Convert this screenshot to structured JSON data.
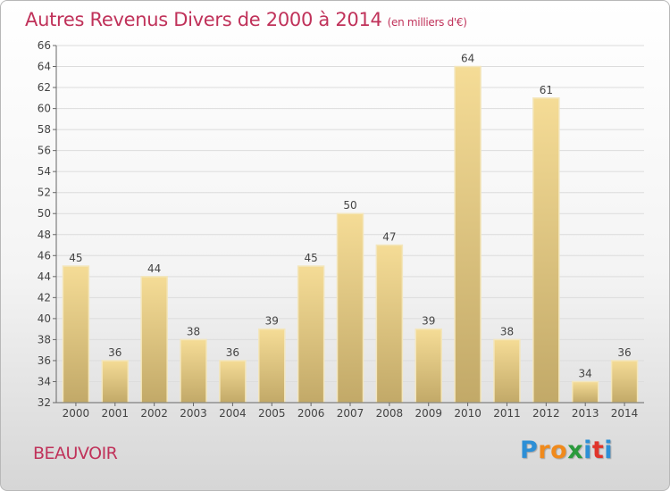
{
  "chart_data": {
    "type": "bar",
    "title": "Autres Revenus Divers de 2000 à 2014",
    "subtitle": "(en milliers d'€)",
    "categories": [
      "2000",
      "2001",
      "2002",
      "2003",
      "2004",
      "2005",
      "2006",
      "2007",
      "2008",
      "2009",
      "2010",
      "2011",
      "2012",
      "2013",
      "2014"
    ],
    "values": [
      45,
      36,
      44,
      38,
      36,
      39,
      45,
      50,
      47,
      39,
      64,
      38,
      61,
      34,
      36
    ],
    "ylim": [
      32,
      66
    ],
    "ytick_step": 2,
    "grid": true,
    "bar_color_top": "#f5dc96",
    "bar_color_bottom": "#c2a968"
  },
  "footer": {
    "town": "BEAUVOIR",
    "logo": "Proxiti",
    "logo_letters": [
      "P",
      "r",
      "o",
      "x",
      "i",
      "t",
      "i"
    ],
    "logo_colors": [
      "#2d8fd6",
      "#f08a1c",
      "#f08a1c",
      "#2a9a3c",
      "#2d8fd6",
      "#e0352b",
      "#2d8fd6"
    ]
  }
}
